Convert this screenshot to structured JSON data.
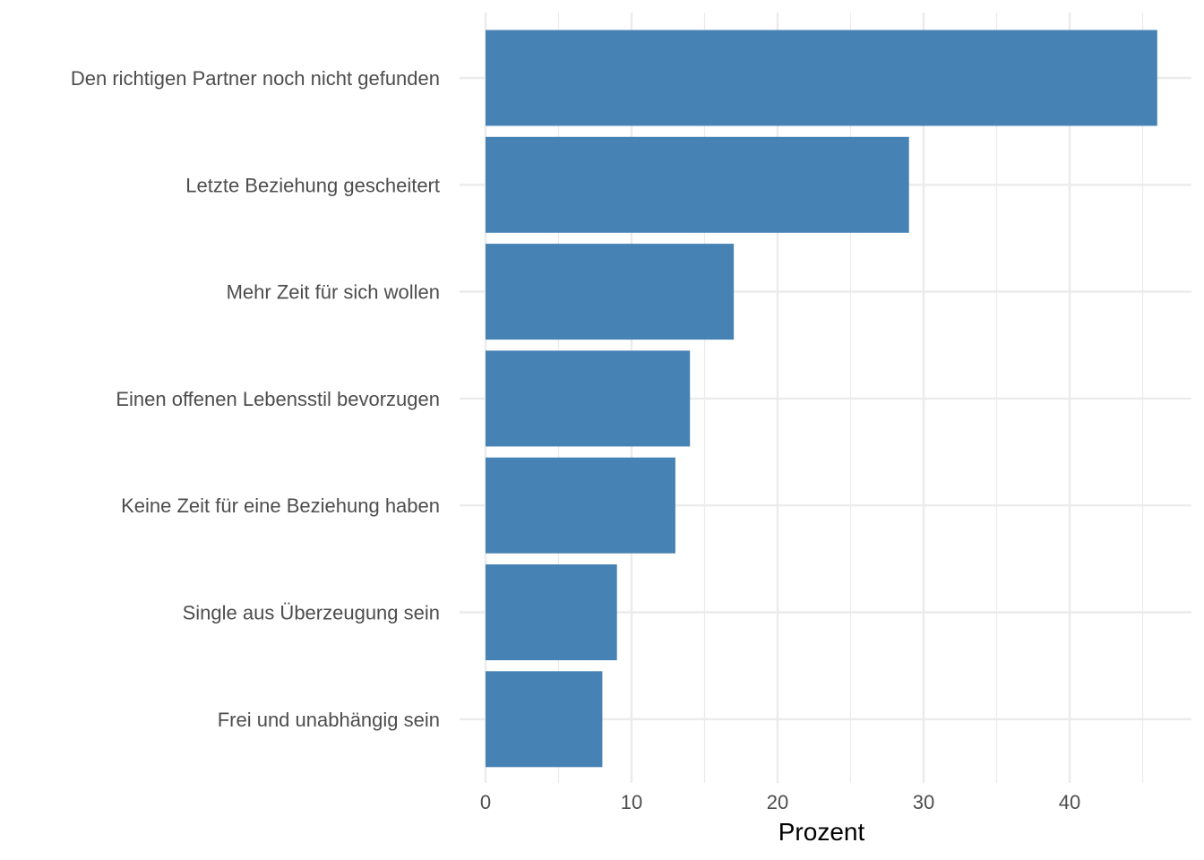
{
  "chart_data": {
    "type": "bar",
    "orientation": "horizontal",
    "categories": [
      "Den richtigen Partner noch nicht gefunden",
      "Letzte Beziehung gescheitert",
      "Mehr Zeit für sich wollen",
      "Einen offenen Lebensstil bevorzugen",
      "Keine Zeit für eine Beziehung haben",
      "Single aus Überzeugung sein",
      "Frei und unabhängig sein"
    ],
    "values": [
      46,
      29,
      17,
      14,
      13,
      9,
      8
    ],
    "xlabel": "Prozent",
    "ylabel": "",
    "xlim": [
      0,
      48
    ],
    "x_ticks": [
      0,
      10,
      20,
      30,
      40
    ],
    "grid": true,
    "bar_color": "#4682b4",
    "grid_color": "#ebebeb"
  }
}
